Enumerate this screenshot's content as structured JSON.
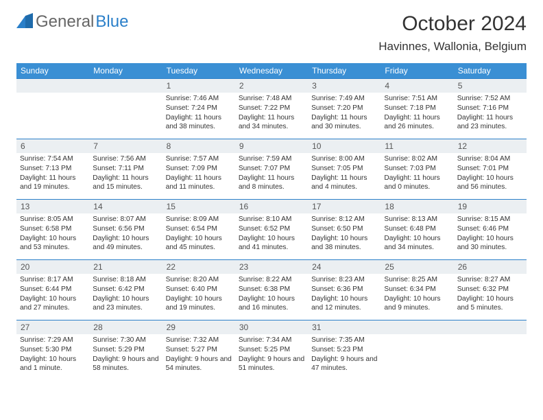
{
  "logo": {
    "textGray": "General",
    "textBlue": "Blue"
  },
  "title": "October 2024",
  "location": "Havinnes, Wallonia, Belgium",
  "dayHeaders": [
    "Sunday",
    "Monday",
    "Tuesday",
    "Wednesday",
    "Thursday",
    "Friday",
    "Saturday"
  ],
  "colors": {
    "headerBg": "#3a8fd4",
    "border": "#2a7fc9",
    "numBg": "#ebeff2"
  },
  "weeks": [
    [
      null,
      null,
      {
        "d": "1",
        "sr": "7:46 AM",
        "ss": "7:24 PM",
        "dl": "11 hours and 38 minutes."
      },
      {
        "d": "2",
        "sr": "7:48 AM",
        "ss": "7:22 PM",
        "dl": "11 hours and 34 minutes."
      },
      {
        "d": "3",
        "sr": "7:49 AM",
        "ss": "7:20 PM",
        "dl": "11 hours and 30 minutes."
      },
      {
        "d": "4",
        "sr": "7:51 AM",
        "ss": "7:18 PM",
        "dl": "11 hours and 26 minutes."
      },
      {
        "d": "5",
        "sr": "7:52 AM",
        "ss": "7:16 PM",
        "dl": "11 hours and 23 minutes."
      }
    ],
    [
      {
        "d": "6",
        "sr": "7:54 AM",
        "ss": "7:13 PM",
        "dl": "11 hours and 19 minutes."
      },
      {
        "d": "7",
        "sr": "7:56 AM",
        "ss": "7:11 PM",
        "dl": "11 hours and 15 minutes."
      },
      {
        "d": "8",
        "sr": "7:57 AM",
        "ss": "7:09 PM",
        "dl": "11 hours and 11 minutes."
      },
      {
        "d": "9",
        "sr": "7:59 AM",
        "ss": "7:07 PM",
        "dl": "11 hours and 8 minutes."
      },
      {
        "d": "10",
        "sr": "8:00 AM",
        "ss": "7:05 PM",
        "dl": "11 hours and 4 minutes."
      },
      {
        "d": "11",
        "sr": "8:02 AM",
        "ss": "7:03 PM",
        "dl": "11 hours and 0 minutes."
      },
      {
        "d": "12",
        "sr": "8:04 AM",
        "ss": "7:01 PM",
        "dl": "10 hours and 56 minutes."
      }
    ],
    [
      {
        "d": "13",
        "sr": "8:05 AM",
        "ss": "6:58 PM",
        "dl": "10 hours and 53 minutes."
      },
      {
        "d": "14",
        "sr": "8:07 AM",
        "ss": "6:56 PM",
        "dl": "10 hours and 49 minutes."
      },
      {
        "d": "15",
        "sr": "8:09 AM",
        "ss": "6:54 PM",
        "dl": "10 hours and 45 minutes."
      },
      {
        "d": "16",
        "sr": "8:10 AM",
        "ss": "6:52 PM",
        "dl": "10 hours and 41 minutes."
      },
      {
        "d": "17",
        "sr": "8:12 AM",
        "ss": "6:50 PM",
        "dl": "10 hours and 38 minutes."
      },
      {
        "d": "18",
        "sr": "8:13 AM",
        "ss": "6:48 PM",
        "dl": "10 hours and 34 minutes."
      },
      {
        "d": "19",
        "sr": "8:15 AM",
        "ss": "6:46 PM",
        "dl": "10 hours and 30 minutes."
      }
    ],
    [
      {
        "d": "20",
        "sr": "8:17 AM",
        "ss": "6:44 PM",
        "dl": "10 hours and 27 minutes."
      },
      {
        "d": "21",
        "sr": "8:18 AM",
        "ss": "6:42 PM",
        "dl": "10 hours and 23 minutes."
      },
      {
        "d": "22",
        "sr": "8:20 AM",
        "ss": "6:40 PM",
        "dl": "10 hours and 19 minutes."
      },
      {
        "d": "23",
        "sr": "8:22 AM",
        "ss": "6:38 PM",
        "dl": "10 hours and 16 minutes."
      },
      {
        "d": "24",
        "sr": "8:23 AM",
        "ss": "6:36 PM",
        "dl": "10 hours and 12 minutes."
      },
      {
        "d": "25",
        "sr": "8:25 AM",
        "ss": "6:34 PM",
        "dl": "10 hours and 9 minutes."
      },
      {
        "d": "26",
        "sr": "8:27 AM",
        "ss": "6:32 PM",
        "dl": "10 hours and 5 minutes."
      }
    ],
    [
      {
        "d": "27",
        "sr": "7:29 AM",
        "ss": "5:30 PM",
        "dl": "10 hours and 1 minute."
      },
      {
        "d": "28",
        "sr": "7:30 AM",
        "ss": "5:29 PM",
        "dl": "9 hours and 58 minutes."
      },
      {
        "d": "29",
        "sr": "7:32 AM",
        "ss": "5:27 PM",
        "dl": "9 hours and 54 minutes."
      },
      {
        "d": "30",
        "sr": "7:34 AM",
        "ss": "5:25 PM",
        "dl": "9 hours and 51 minutes."
      },
      {
        "d": "31",
        "sr": "7:35 AM",
        "ss": "5:23 PM",
        "dl": "9 hours and 47 minutes."
      },
      null,
      null
    ]
  ],
  "labels": {
    "sunrise": "Sunrise:",
    "sunset": "Sunset:",
    "daylight": "Daylight:"
  }
}
